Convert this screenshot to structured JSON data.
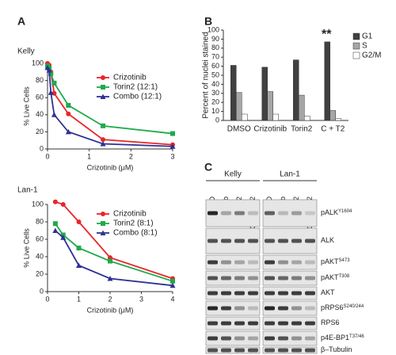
{
  "panels": [
    "A",
    "B",
    "C"
  ],
  "chart_data": [
    {
      "type": "line",
      "title": "Kelly",
      "xlabel": "Crizotinib (μM)",
      "ylabel": "% Live Cells",
      "x": [
        0,
        0.04,
        0.08,
        0.16,
        0.5,
        1.33,
        3
      ],
      "xlim": [
        0,
        3
      ],
      "xticks": [
        0,
        1,
        2,
        3
      ],
      "ylim": [
        0,
        100
      ],
      "yticks": [
        0,
        20,
        40,
        60,
        80,
        100
      ],
      "series": [
        {
          "name": "Crizotinib",
          "color": "#e8262a",
          "marker": "circle",
          "values": [
            100,
            98,
            90,
            65,
            41,
            11,
            5
          ]
        },
        {
          "name": "Torin2 (12:1)",
          "color": "#1faa4a",
          "marker": "square",
          "values": [
            97,
            95,
            88,
            77,
            51,
            27,
            18
          ]
        },
        {
          "name": "Combo (12:1)",
          "color": "#2e3192",
          "marker": "triangle",
          "values": [
            95,
            92,
            66,
            40,
            20,
            6,
            3
          ]
        }
      ]
    },
    {
      "type": "line",
      "title": "Lan-1",
      "xlabel": "Crizotinib (μM)",
      "ylabel": "% Live Cells",
      "x": [
        0.25,
        0.5,
        1,
        2,
        4
      ],
      "xlim": [
        0,
        4
      ],
      "xticks": [
        0,
        1,
        2,
        3,
        4
      ],
      "ylim": [
        0,
        100
      ],
      "yticks": [
        0,
        20,
        40,
        60,
        80,
        100
      ],
      "series": [
        {
          "name": "Crizotinib",
          "color": "#e8262a",
          "marker": "circle",
          "values": [
            103,
            100,
            80,
            39,
            15
          ]
        },
        {
          "name": "Torin2 (8:1)",
          "color": "#1faa4a",
          "marker": "square",
          "values": [
            78,
            65,
            50,
            35,
            12
          ]
        },
        {
          "name": "Combo (8:1)",
          "color": "#2e3192",
          "marker": "triangle",
          "values": [
            70,
            62,
            30,
            15,
            7
          ]
        }
      ]
    },
    {
      "type": "bar",
      "ylabel": "Percent of nuclei stained",
      "annotation": "**",
      "categories": [
        "DMSO",
        "Crizotinib",
        "Torin2",
        "C + T2"
      ],
      "ylim": [
        0,
        100
      ],
      "yticks": [
        0,
        10,
        20,
        30,
        40,
        50,
        60,
        70,
        80,
        90,
        100
      ],
      "series": [
        {
          "name": "G1",
          "color": "#404040",
          "values": [
            61,
            59,
            67,
            87
          ]
        },
        {
          "name": "S",
          "color": "#a6a6a6",
          "values": [
            31,
            32,
            28,
            11
          ]
        },
        {
          "name": "G2/M",
          "color": "#ffffff",
          "values": [
            7,
            7,
            5,
            2
          ]
        }
      ]
    }
  ],
  "blot": {
    "cell_lines": [
      "Kelly",
      "Lan-1"
    ],
    "lanes": [
      "DMSO",
      "Crizotinib",
      "Torin2",
      "C + Torin2"
    ],
    "rows": [
      {
        "label": "pALK",
        "sup": "Y1604"
      },
      {
        "label": "ALK"
      },
      {
        "label": "pAKT",
        "sup": "S473"
      },
      {
        "label": "pAKT",
        "sup": "T308"
      },
      {
        "label": "AKT"
      },
      {
        "label": "pRPS6",
        "sup": "S240/244"
      },
      {
        "label": "RPS6"
      },
      {
        "label": "p4E-BP1",
        "sup": "T37/46"
      },
      {
        "label": "β–Tubulin"
      }
    ]
  }
}
